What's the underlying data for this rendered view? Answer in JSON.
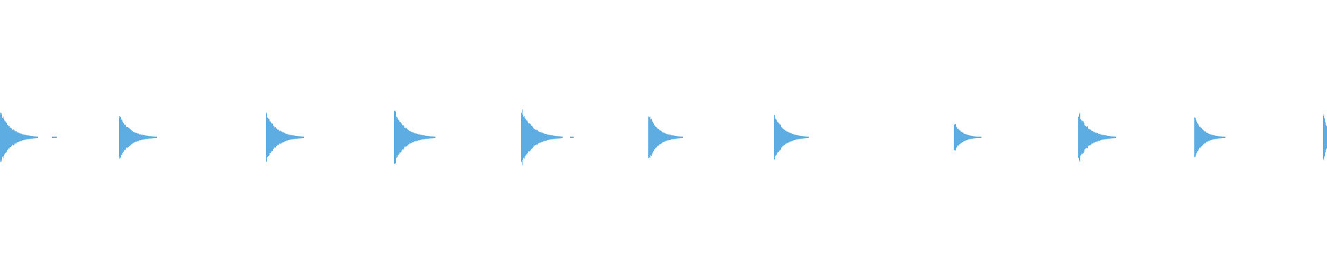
{
  "waveform": {
    "color": "#5dade2",
    "peaks": [
      0.4,
      0.34,
      0.37,
      0.39,
      0.42,
      0.36,
      0.35,
      0.22,
      0.37,
      0.3,
      0.34
    ]
  }
}
